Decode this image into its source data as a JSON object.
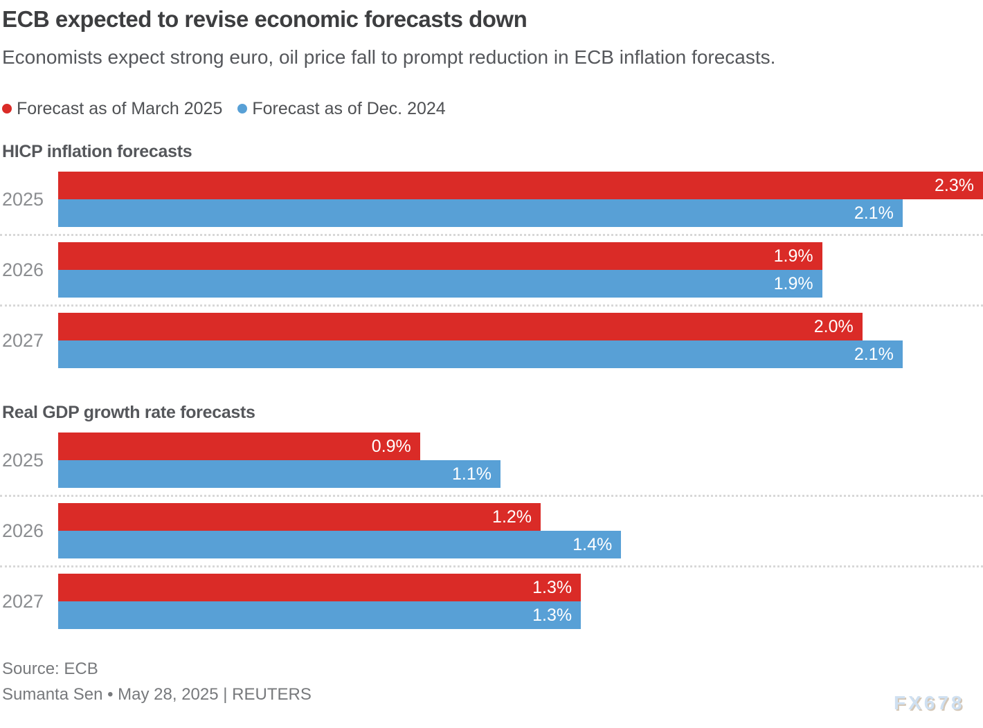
{
  "header": {
    "title": "ECB expected to revise economic forecasts down",
    "subtitle": "Economists expect strong euro, oil price fall to prompt reduction in ECB inflation forecasts."
  },
  "legend": [
    {
      "label": "Forecast as of March 2025",
      "color": "#da2b27"
    },
    {
      "label": "Forecast as of Dec. 2024",
      "color": "#58a0d6"
    }
  ],
  "colors": {
    "march_2025_red": "#da2b27",
    "dec_2024_blue": "#58a0d6",
    "title_text": "#3d3e40",
    "body_text": "#55575b",
    "category_text": "#8b8d90",
    "footer_text": "#77797c",
    "separator": "#d8d8d8",
    "watermark_blue": "#cfe0f1"
  },
  "chart_data": [
    {
      "type": "bar",
      "orientation": "horizontal",
      "title": "HICP inflation forecasts",
      "categories": [
        "2025",
        "2026",
        "2027"
      ],
      "series": [
        {
          "name": "Forecast as of March 2025",
          "color": "#da2b27",
          "values": [
            2.3,
            1.9,
            2.0
          ],
          "labels": [
            "2.3%",
            "1.9%",
            "2.0%"
          ]
        },
        {
          "name": "Forecast as of Dec. 2024",
          "color": "#58a0d6",
          "values": [
            2.1,
            1.9,
            2.1
          ],
          "labels": [
            "2.1%",
            "1.9%",
            "2.1%"
          ]
        }
      ],
      "xlim": [
        0,
        2.3
      ],
      "grid": false,
      "value_labels": "inside-end",
      "legend_position": "top"
    },
    {
      "type": "bar",
      "orientation": "horizontal",
      "title": "Real GDP growth rate forecasts",
      "categories": [
        "2025",
        "2026",
        "2027"
      ],
      "series": [
        {
          "name": "Forecast as of March 2025",
          "color": "#da2b27",
          "values": [
            0.9,
            1.2,
            1.3
          ],
          "labels": [
            "0.9%",
            "1.2%",
            "1.3%"
          ]
        },
        {
          "name": "Forecast as of Dec. 2024",
          "color": "#58a0d6",
          "values": [
            1.1,
            1.4,
            1.3
          ],
          "labels": [
            "1.1%",
            "1.4%",
            "1.3%"
          ]
        }
      ],
      "xlim": [
        0,
        2.3
      ],
      "grid": false,
      "value_labels": "inside-end",
      "legend_position": "top"
    }
  ],
  "footer": {
    "source": "Source: ECB",
    "byline": "Sumanta Sen • May 28, 2025 | REUTERS"
  },
  "watermark": "FX678"
}
